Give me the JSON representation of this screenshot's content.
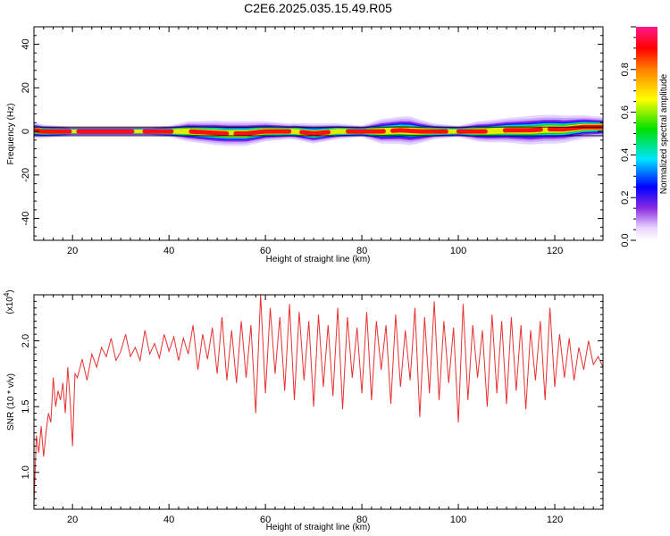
{
  "figure_title": "C2E6.2025.035.15.49.R05",
  "chart_data": [
    {
      "type": "heatmap",
      "title": "",
      "xlabel": "Height of straight line (km)",
      "ylabel": "Frequency (Hz)",
      "xlim": [
        12,
        130
      ],
      "ylim": [
        -50,
        48
      ],
      "x_ticks": [
        20,
        40,
        60,
        80,
        100,
        120
      ],
      "y_ticks": [
        -40,
        -20,
        0,
        20,
        40
      ],
      "colorbar": {
        "label": "Normalized spectral amplitude",
        "range": [
          0,
          1
        ],
        "ticks": [
          "0.0",
          "0.2",
          "0.4",
          "0.6",
          "0.8"
        ],
        "tick_values": [
          0,
          0.2,
          0.4,
          0.6,
          0.8
        ]
      },
      "band_center_hz": [
        [
          12,
          0.5
        ],
        [
          14,
          0
        ],
        [
          20,
          0
        ],
        [
          36,
          0
        ],
        [
          44,
          0
        ],
        [
          48,
          -0.5
        ],
        [
          52,
          -1
        ],
        [
          56,
          -1
        ],
        [
          60,
          0
        ],
        [
          63,
          0
        ],
        [
          66,
          0
        ],
        [
          70,
          -1
        ],
        [
          75,
          0
        ],
        [
          80,
          0
        ],
        [
          84,
          0
        ],
        [
          88,
          0.5
        ],
        [
          92,
          0
        ],
        [
          96,
          0
        ],
        [
          100,
          0
        ],
        [
          104,
          0
        ],
        [
          106,
          0
        ],
        [
          110,
          0.5
        ],
        [
          115,
          0.5
        ],
        [
          118,
          1
        ],
        [
          122,
          1
        ],
        [
          126,
          2
        ],
        [
          130,
          2
        ]
      ],
      "band_halfwidth_hz": [
        [
          12,
          3
        ],
        [
          14,
          2.5
        ],
        [
          20,
          1.5
        ],
        [
          36,
          1.5
        ],
        [
          40,
          2
        ],
        [
          44,
          4
        ],
        [
          50,
          5
        ],
        [
          56,
          5
        ],
        [
          60,
          4
        ],
        [
          65,
          3
        ],
        [
          70,
          4
        ],
        [
          75,
          3
        ],
        [
          80,
          2
        ],
        [
          84,
          5
        ],
        [
          90,
          6
        ],
        [
          95,
          3
        ],
        [
          100,
          2
        ],
        [
          104,
          4
        ],
        [
          110,
          5
        ],
        [
          115,
          6
        ],
        [
          120,
          6
        ],
        [
          125,
          5
        ],
        [
          130,
          4
        ]
      ]
    },
    {
      "type": "line",
      "title": "",
      "xlabel": "Height of straight line (km)",
      "ylabel": "SNR (10 * v/v)",
      "scale_label": "(x10",
      "scale_exponent": "4",
      "xlim": [
        12,
        130
      ],
      "ylim": [
        0.72,
        2.35
      ],
      "x_ticks": [
        20,
        40,
        60,
        80,
        100,
        120
      ],
      "y_ticks": [
        "1.0",
        "1.5",
        "2.0"
      ],
      "y_tick_values": [
        1.0,
        1.5,
        2.0
      ],
      "series": [
        {
          "color": "#e83030",
          "x": [
            12,
            12.5,
            13,
            13.5,
            14,
            14.5,
            15,
            15.5,
            16,
            16.5,
            17,
            17.5,
            18,
            18.5,
            19,
            19.5,
            20,
            20.5,
            21,
            22,
            23,
            24,
            25,
            26,
            27,
            28,
            29,
            30,
            31,
            32,
            33,
            34,
            35,
            36,
            37,
            38,
            39,
            40,
            41,
            42,
            43,
            44,
            45,
            46,
            47,
            48,
            49,
            50,
            51,
            52,
            53,
            54,
            55,
            56,
            57,
            58,
            59,
            60,
            61,
            62,
            63,
            64,
            65,
            66,
            67,
            68,
            69,
            70,
            71,
            72,
            73,
            74,
            75,
            76,
            77,
            78,
            79,
            80,
            81,
            82,
            83,
            84,
            85,
            86,
            87,
            88,
            89,
            90,
            91,
            92,
            93,
            94,
            95,
            96,
            97,
            98,
            99,
            100,
            101,
            102,
            103,
            104,
            105,
            106,
            107,
            108,
            109,
            110,
            111,
            112,
            113,
            114,
            115,
            116,
            117,
            118,
            119,
            120,
            121,
            122,
            123,
            124,
            125,
            126,
            127,
            128,
            129,
            130
          ],
          "y": [
            0.75,
            1.28,
            1.15,
            1.35,
            1.12,
            1.3,
            1.45,
            1.38,
            1.72,
            1.5,
            1.62,
            1.55,
            1.68,
            1.45,
            1.8,
            1.55,
            1.2,
            1.75,
            1.72,
            1.86,
            1.7,
            1.9,
            1.8,
            1.95,
            1.88,
            2.02,
            1.85,
            1.92,
            2.05,
            1.88,
            1.95,
            1.85,
            2.08,
            1.9,
            1.98,
            1.87,
            2.05,
            1.92,
            2.03,
            1.85,
            2.02,
            1.9,
            2.12,
            1.78,
            2.05,
            1.86,
            2.1,
            1.75,
            2.18,
            1.7,
            2.08,
            1.68,
            2.15,
            1.72,
            2.12,
            1.45,
            2.35,
            1.6,
            2.25,
            1.75,
            2.18,
            1.62,
            2.28,
            1.55,
            2.22,
            1.7,
            2.15,
            1.5,
            2.2,
            1.65,
            2.12,
            1.58,
            2.25,
            1.48,
            2.18,
            1.72,
            2.1,
            1.6,
            2.22,
            1.55,
            2.15,
            1.78,
            2.12,
            1.52,
            2.2,
            1.65,
            2.08,
            1.7,
            2.25,
            1.42,
            2.18,
            1.6,
            2.3,
            1.55,
            2.15,
            1.68,
            2.1,
            1.38,
            2.28,
            1.55,
            2.12,
            1.72,
            2.08,
            1.5,
            2.2,
            1.6,
            2.15,
            1.52,
            2.18,
            1.62,
            2.12,
            1.48,
            2.08,
            1.7,
            2.15,
            1.55,
            2.25,
            1.65,
            2.05,
            1.72,
            2.02,
            1.7,
            1.95,
            1.78,
            2.0,
            1.82,
            1.88,
            1.8
          ]
        }
      ]
    }
  ]
}
